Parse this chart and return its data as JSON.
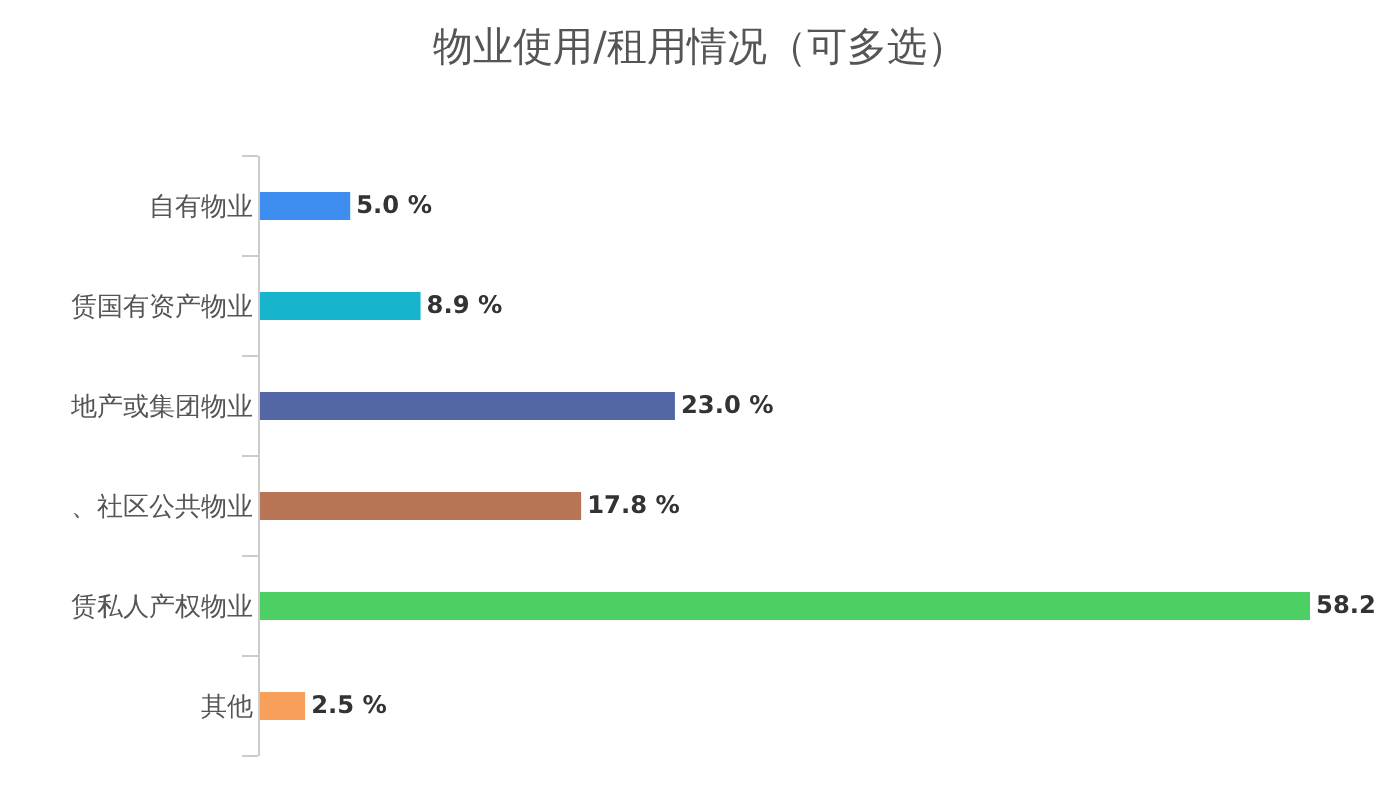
{
  "chart_data": {
    "type": "bar",
    "orientation": "horizontal",
    "title": "物业使用/租用情况（可多选）",
    "categories": [
      "自有物业",
      "赁国有资产物业",
      "地产或集团物业",
      "、社区公共物业",
      "赁私人产权物业",
      "其他"
    ],
    "values": [
      5.0,
      8.9,
      23.0,
      17.8,
      58.2,
      2.5
    ],
    "colors": [
      "#3d8ef0",
      "#17b5cc",
      "#5367a6",
      "#b87556",
      "#4cd064",
      "#f8a05a"
    ],
    "value_labels": [
      "5.0 %",
      "8.9 %",
      "23.0 %",
      "17.8 %",
      "58.2",
      "2.5 %"
    ]
  }
}
